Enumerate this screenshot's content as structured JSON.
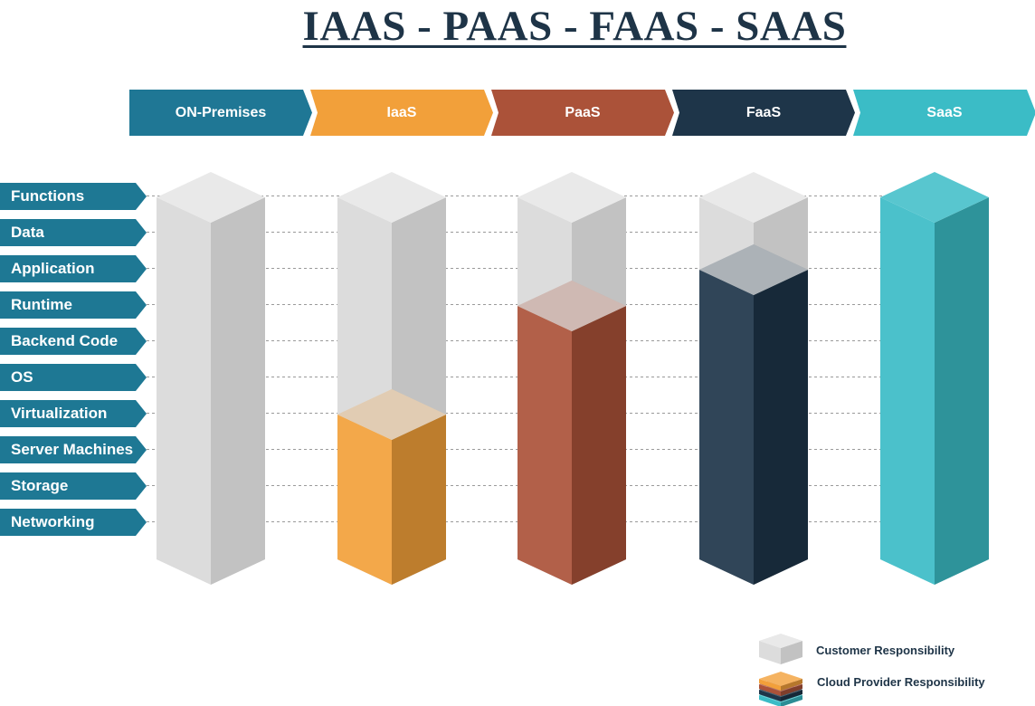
{
  "title": "IAAS - PAAS - FAAS - SAAS",
  "models": [
    {
      "label": "ON-Premises",
      "color": "#1f7795",
      "provider_layers": 0
    },
    {
      "label": "IaaS",
      "color": "#f2a03a",
      "provider_layers": 4
    },
    {
      "label": "PaaS",
      "color": "#ab5239",
      "provider_layers": 7
    },
    {
      "label": "FaaS",
      "color": "#1e3549",
      "provider_layers": 8
    },
    {
      "label": "SaaS",
      "color": "#3bbcc6",
      "provider_layers": 10
    }
  ],
  "layers": [
    "Functions",
    "Data",
    "Application",
    "Runtime",
    "Backend Code",
    "OS",
    "Virtualization",
    "Server Machines",
    "Storage",
    "Networking"
  ],
  "colors": {
    "customer_light": "#dcdcdc",
    "customer_dark": "#c2c2c2",
    "customer_top": "#e9e9e9",
    "row_label_bg": "#1e7894",
    "gridline": "#9a9a9a",
    "title": "#1e3447"
  },
  "legend": {
    "customer": "Customer Responsibility",
    "provider": "Cloud Provider Responsibility"
  }
}
